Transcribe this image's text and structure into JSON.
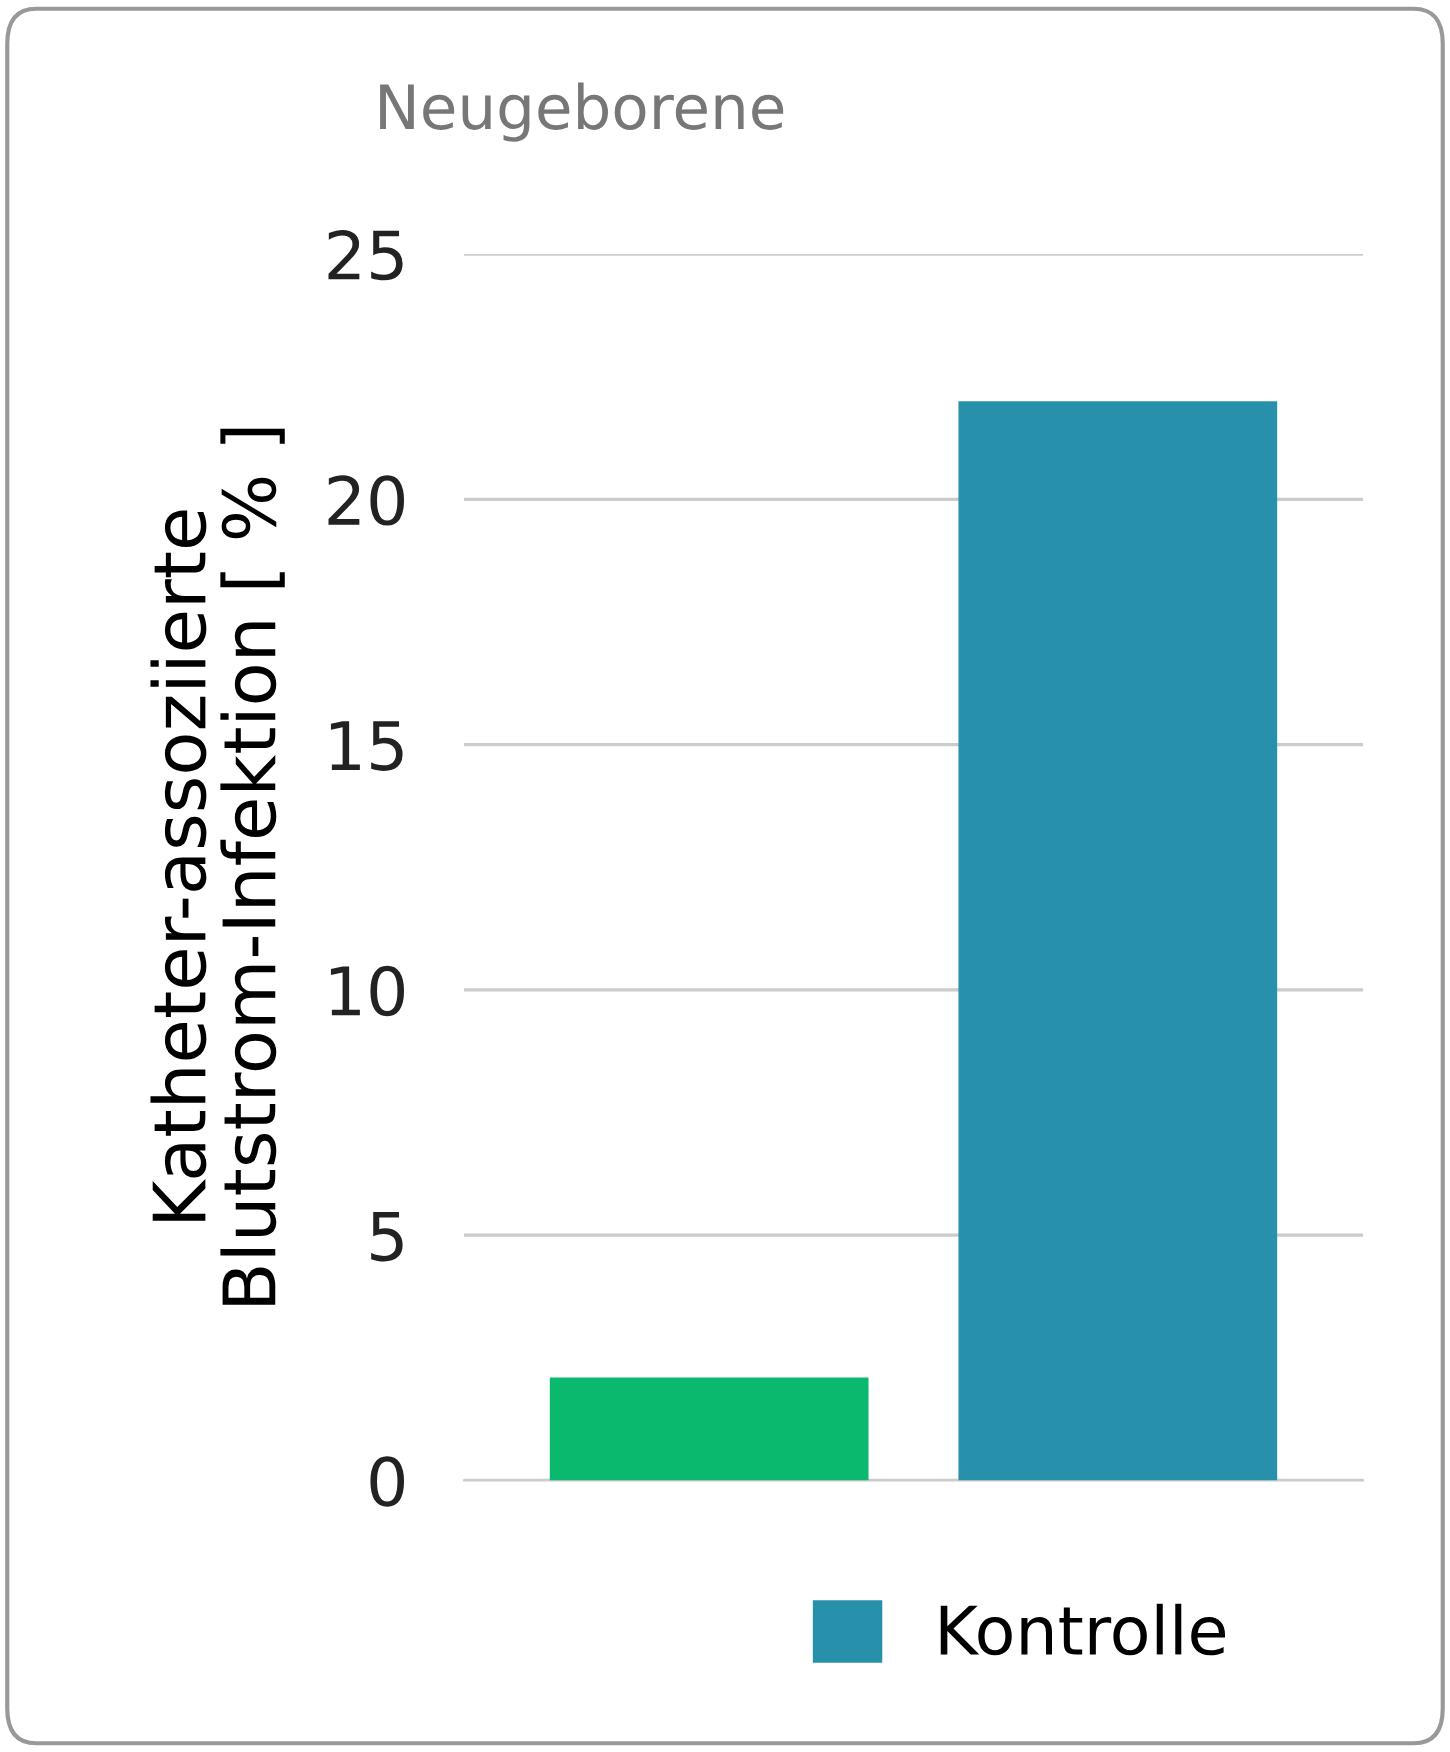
{
  "chart_data": {
    "type": "bar",
    "title": "Neugeborene",
    "ylabel": "Katheter-assoziierte\nBlutstrom-Infektion [ % ]",
    "categories": [
      null,
      null
    ],
    "series": [
      {
        "color": "#0bb96e",
        "values": [
          2.1,
          null
        ]
      },
      {
        "name": "Kontrolle",
        "color": "#2790ab",
        "values": [
          null,
          22
        ]
      }
    ],
    "ylim": [
      0,
      25
    ],
    "yticks": [
      0,
      5,
      10,
      15,
      20,
      25
    ],
    "grid": "y",
    "legend": "bottom",
    "tick_labels": "y"
  }
}
